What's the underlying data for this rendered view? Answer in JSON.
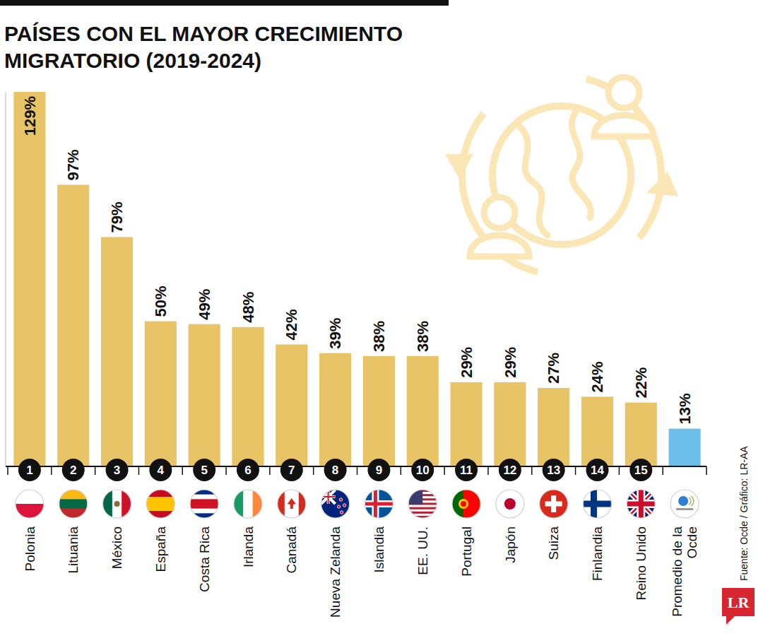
{
  "chart_data": {
    "type": "bar",
    "title": "PAÍSES CON EL MAYOR CRECIMIENTO MIGRATORIO (2019-2024)",
    "categories": [
      "Polonia",
      "Lituania",
      "México",
      "España",
      "Costa Rica",
      "Irlanda",
      "Canadá",
      "Nueva Zelanda",
      "Islandia",
      "EE. UU.",
      "Portugal",
      "Japón",
      "Suiza",
      "Finlandia",
      "Reino Unido",
      "Promedio de la Ocde"
    ],
    "values": [
      129,
      97,
      79,
      50,
      49,
      48,
      42,
      39,
      38,
      38,
      29,
      29,
      27,
      24,
      22,
      13
    ],
    "value_labels": [
      "129%",
      "97%",
      "79%",
      "50%",
      "49%",
      "48%",
      "42%",
      "39%",
      "38%",
      "38%",
      "29%",
      "29%",
      "27%",
      "24%",
      "22%",
      "13%"
    ],
    "colors": [
      "#e9c466",
      "#e9c466",
      "#e9c466",
      "#e9c466",
      "#e9c466",
      "#e9c466",
      "#e9c466",
      "#e9c466",
      "#e9c466",
      "#e9c466",
      "#e9c466",
      "#e9c466",
      "#e9c466",
      "#e9c466",
      "#e9c466",
      "#6cbfea"
    ],
    "ranks": [
      1,
      2,
      3,
      4,
      5,
      6,
      7,
      8,
      9,
      10,
      11,
      12,
      13,
      14,
      15,
      null
    ],
    "ylim": [
      0,
      129
    ],
    "data_labels": true,
    "tick_labels": "x",
    "source": "Fuente: Ocde / Gráfico: LR-AA",
    "logo": "LR"
  }
}
